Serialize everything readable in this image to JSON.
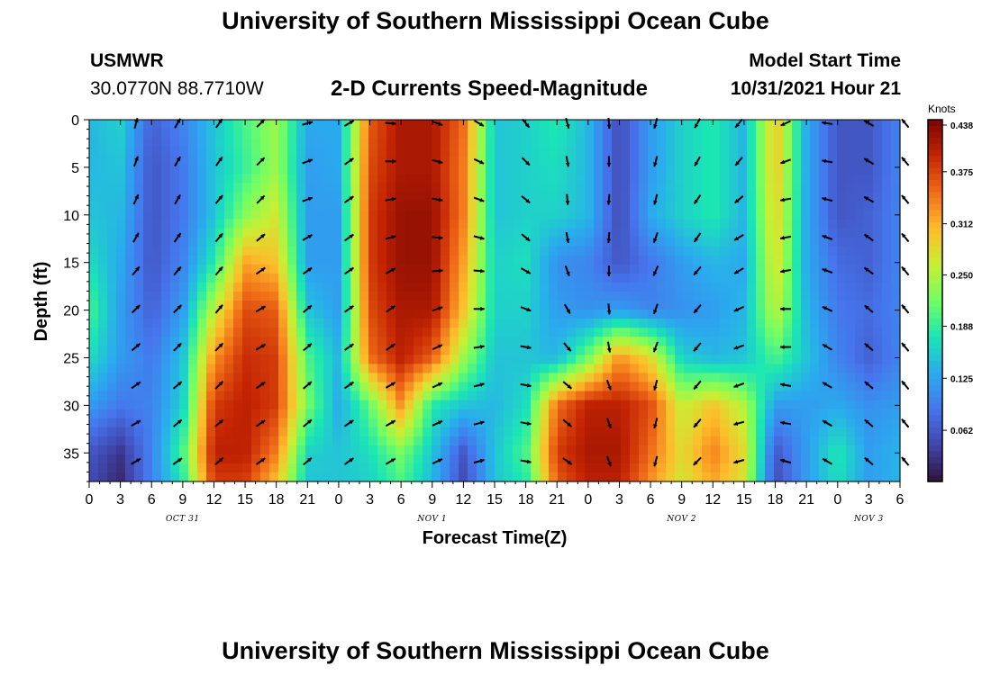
{
  "header": {
    "title": "University of Southern Mississippi Ocean Cube",
    "station": "USMWR",
    "coords": "30.0770N  88.7710W",
    "subtitle": "2-D Currents Speed-Magnitude",
    "model_start_label": "Model Start Time",
    "model_start_value": "10/31/2021 Hour 21"
  },
  "footer": {
    "title": "University of Southern Mississippi Ocean Cube"
  },
  "chart_data": {
    "type": "heatmap",
    "title": "2-D Currents Speed-Magnitude",
    "xlabel": "Forecast Time(Z)",
    "ylabel": "Depth (ft)",
    "x_hours_range": [
      0,
      78
    ],
    "ylim": [
      0,
      38
    ],
    "y_ticks": [
      0,
      5,
      10,
      15,
      20,
      25,
      30,
      35
    ],
    "x_tick_hours": [
      0,
      3,
      6,
      9,
      12,
      15,
      18,
      21,
      24,
      27,
      30,
      33,
      36,
      39,
      42,
      45,
      48,
      51,
      54,
      57,
      60,
      63,
      66,
      69,
      72,
      75,
      78
    ],
    "x_tick_labels": [
      "0",
      "3",
      "6",
      "9",
      "12",
      "15",
      "18",
      "21",
      "0",
      "3",
      "6",
      "9",
      "12",
      "15",
      "18",
      "21",
      "0",
      "3",
      "6",
      "9",
      "12",
      "15",
      "18",
      "21",
      "0",
      "3",
      "6"
    ],
    "date_labels": [
      {
        "text": "OCT 31",
        "hour": 9
      },
      {
        "text": "NOV 1",
        "hour": 33
      },
      {
        "text": "NOV 2",
        "hour": 57
      },
      {
        "text": "NOV 3",
        "hour": 75
      }
    ],
    "colorbar": {
      "unit": "Knots",
      "min": 0.0,
      "max": 0.438,
      "ticks": [
        "0.438",
        "0.375",
        "0.312",
        "0.250",
        "0.188",
        "0.125",
        "0.062"
      ],
      "tick_values": [
        0.438,
        0.375,
        0.312,
        0.25,
        0.188,
        0.125,
        0.062
      ]
    },
    "speed_rows": {
      "hours": [
        0,
        3,
        6,
        9,
        12,
        15,
        18,
        21,
        24,
        27,
        30,
        33,
        36,
        39,
        42,
        45,
        48,
        51,
        54,
        57,
        60,
        63,
        66,
        69,
        72,
        75,
        78
      ],
      "depth_0": [
        0.14,
        0.16,
        0.07,
        0.1,
        0.15,
        0.2,
        0.24,
        0.13,
        0.13,
        0.36,
        0.41,
        0.41,
        0.35,
        0.15,
        0.16,
        0.18,
        0.14,
        0.05,
        0.12,
        0.16,
        0.18,
        0.14,
        0.3,
        0.13,
        0.06,
        0.06,
        0.1
      ],
      "depth_5": [
        0.14,
        0.15,
        0.06,
        0.09,
        0.15,
        0.19,
        0.24,
        0.12,
        0.13,
        0.37,
        0.41,
        0.41,
        0.34,
        0.15,
        0.16,
        0.17,
        0.14,
        0.05,
        0.12,
        0.16,
        0.18,
        0.14,
        0.3,
        0.13,
        0.06,
        0.06,
        0.1
      ],
      "depth_10": [
        0.15,
        0.14,
        0.06,
        0.09,
        0.15,
        0.23,
        0.27,
        0.12,
        0.12,
        0.38,
        0.42,
        0.42,
        0.34,
        0.15,
        0.16,
        0.16,
        0.14,
        0.05,
        0.13,
        0.16,
        0.18,
        0.14,
        0.29,
        0.13,
        0.06,
        0.07,
        0.1
      ],
      "depth_15": [
        0.17,
        0.13,
        0.06,
        0.1,
        0.18,
        0.32,
        0.3,
        0.12,
        0.12,
        0.38,
        0.42,
        0.42,
        0.32,
        0.16,
        0.17,
        0.11,
        0.1,
        0.06,
        0.09,
        0.12,
        0.14,
        0.13,
        0.28,
        0.13,
        0.08,
        0.07,
        0.1
      ],
      "depth_20": [
        0.2,
        0.12,
        0.07,
        0.12,
        0.26,
        0.37,
        0.36,
        0.15,
        0.12,
        0.37,
        0.41,
        0.41,
        0.3,
        0.16,
        0.16,
        0.12,
        0.11,
        0.12,
        0.1,
        0.11,
        0.12,
        0.14,
        0.26,
        0.14,
        0.09,
        0.08,
        0.1
      ],
      "depth_25": [
        0.17,
        0.12,
        0.09,
        0.15,
        0.33,
        0.39,
        0.38,
        0.2,
        0.14,
        0.35,
        0.4,
        0.36,
        0.24,
        0.15,
        0.15,
        0.14,
        0.22,
        0.33,
        0.28,
        0.16,
        0.14,
        0.15,
        0.2,
        0.15,
        0.1,
        0.07,
        0.1
      ],
      "depth_30": [
        0.12,
        0.09,
        0.1,
        0.16,
        0.38,
        0.4,
        0.38,
        0.22,
        0.13,
        0.21,
        0.33,
        0.18,
        0.15,
        0.14,
        0.17,
        0.35,
        0.4,
        0.4,
        0.37,
        0.26,
        0.3,
        0.25,
        0.12,
        0.12,
        0.13,
        0.11,
        0.12
      ],
      "depth_35": [
        0.06,
        0.03,
        0.1,
        0.2,
        0.4,
        0.4,
        0.34,
        0.16,
        0.15,
        0.17,
        0.22,
        0.15,
        0.06,
        0.15,
        0.2,
        0.38,
        0.41,
        0.41,
        0.35,
        0.28,
        0.34,
        0.28,
        0.06,
        0.12,
        0.18,
        0.12,
        0.14
      ],
      "depth_38": [
        0.05,
        0.02,
        0.1,
        0.18,
        0.38,
        0.38,
        0.3,
        0.15,
        0.15,
        0.16,
        0.2,
        0.14,
        0.05,
        0.15,
        0.18,
        0.36,
        0.4,
        0.4,
        0.33,
        0.27,
        0.32,
        0.27,
        0.05,
        0.12,
        0.17,
        0.12,
        0.14
      ]
    },
    "vector_hours": [
      4.5,
      8.5,
      12.5,
      16.5,
      21,
      25,
      29,
      33.5,
      37.5,
      42,
      46,
      50,
      54.5,
      58.5,
      62.5,
      67,
      71,
      75,
      78.5
    ],
    "vector_depths": [
      0,
      4,
      8,
      12,
      15.5,
      19.5,
      23.5,
      27.5,
      31.5,
      35.5
    ],
    "vector_directions_deg": [
      [
        15,
        30,
        35,
        45,
        75,
        60,
        95,
        110,
        120,
        140,
        165,
        175,
        195,
        210,
        220,
        245,
        280,
        300,
        320
      ],
      [
        20,
        30,
        35,
        45,
        70,
        55,
        90,
        105,
        115,
        135,
        170,
        180,
        195,
        210,
        220,
        250,
        280,
        300,
        320
      ],
      [
        25,
        30,
        40,
        45,
        70,
        55,
        80,
        100,
        110,
        130,
        175,
        185,
        195,
        215,
        230,
        260,
        285,
        300,
        320
      ],
      [
        30,
        35,
        40,
        50,
        60,
        55,
        75,
        95,
        105,
        130,
        170,
        185,
        200,
        215,
        240,
        260,
        290,
        305,
        320
      ],
      [
        40,
        40,
        40,
        55,
        55,
        55,
        60,
        85,
        95,
        120,
        160,
        180,
        205,
        220,
        240,
        260,
        290,
        305,
        320
      ],
      [
        45,
        45,
        40,
        60,
        50,
        55,
        55,
        70,
        90,
        110,
        150,
        175,
        200,
        220,
        245,
        270,
        295,
        310,
        320
      ],
      [
        50,
        45,
        45,
        60,
        50,
        55,
        55,
        65,
        80,
        100,
        140,
        170,
        200,
        220,
        250,
        270,
        300,
        310,
        320
      ],
      [
        55,
        50,
        45,
        55,
        50,
        55,
        60,
        65,
        75,
        100,
        130,
        160,
        195,
        220,
        250,
        280,
        300,
        310,
        320
      ],
      [
        60,
        50,
        50,
        55,
        50,
        55,
        60,
        65,
        75,
        100,
        130,
        160,
        195,
        220,
        255,
        280,
        300,
        310,
        320
      ],
      [
        60,
        55,
        50,
        55,
        50,
        55,
        60,
        65,
        75,
        100,
        125,
        160,
        195,
        225,
        255,
        285,
        300,
        310,
        320
      ]
    ]
  }
}
